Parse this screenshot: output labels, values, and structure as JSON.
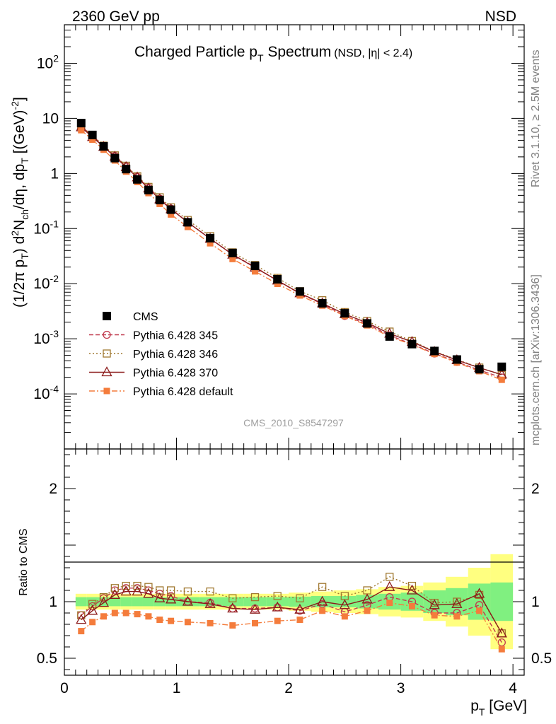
{
  "header": {
    "energy": "2360 GeV pp",
    "process": "NSD"
  },
  "side_text": {
    "rivet": "Rivet 3.1.10, ≥ 2.5M events",
    "url": "mcplots.cern.ch [arXiv:1306.3436]"
  },
  "analysis_id": "CMS_2010_S8547297",
  "chart_data": [
    {
      "type": "scatter",
      "panel": "main",
      "title": "Charged Particle p_T Spectrum",
      "title_parts": {
        "main": "Charged Particle p",
        "sub": "T",
        "rest": " Spectrum",
        "note": "(NSD, |η| < 2.4)"
      },
      "ylabel": "(1/2π p_T) d²N_ch/dη, dp_T [(GeV)⁻²]",
      "ylabel_parts": {
        "a": "(1/2π p",
        "a_sub": "T",
        "b": ") d",
        "b_sup": "2",
        "c": "N",
        "c_sub": "ch",
        "d": "/dη, dp",
        "d_sub": "T",
        "e": " [(GeV)",
        "e_sup": "-2",
        "f": "]"
      },
      "xlabel": "",
      "yscale": "log",
      "xlim": [
        0,
        4.1
      ],
      "ylim": [
        1e-05,
        500
      ],
      "yticks": [
        {
          "base": "10",
          "exp": "-4",
          "value": 0.0001
        },
        {
          "base": "10",
          "exp": "-3",
          "value": 0.001
        },
        {
          "base": "10",
          "exp": "-2",
          "value": 0.01
        },
        {
          "base": "10",
          "exp": "-1",
          "value": 0.1
        },
        {
          "base": "1",
          "exp": "",
          "value": 1
        },
        {
          "base": "10",
          "exp": "",
          "value": 10
        },
        {
          "base": "10",
          "exp": "2",
          "value": 100
        }
      ],
      "x": [
        0.15,
        0.25,
        0.35,
        0.45,
        0.55,
        0.65,
        0.75,
        0.85,
        0.95,
        1.1,
        1.3,
        1.5,
        1.7,
        1.9,
        2.1,
        2.3,
        2.5,
        2.7,
        2.9,
        3.1,
        3.3,
        3.5,
        3.7,
        3.9
      ],
      "series": [
        {
          "name": "CMS",
          "marker": "square-filled",
          "color": "#000000",
          "dash": "none",
          "values": [
            8.2,
            5.0,
            3.1,
            1.9,
            1.2,
            0.78,
            0.5,
            0.33,
            0.22,
            0.13,
            0.067,
            0.036,
            0.021,
            0.012,
            0.0072,
            0.0044,
            0.0029,
            0.0019,
            0.0011,
            0.0008,
            0.0006,
            0.00042,
            0.00028,
            0.00031
          ]
        },
        {
          "name": "Pythia 6.428 345",
          "marker": "circle-open",
          "color": "#c0394d",
          "dash": "6,3",
          "values": [
            7.2,
            4.8,
            3.15,
            2.08,
            1.34,
            0.87,
            0.55,
            0.35,
            0.23,
            0.13,
            0.066,
            0.034,
            0.02,
            0.0114,
            0.0066,
            0.0043,
            0.0026,
            0.00185,
            0.00115,
            0.0008,
            0.00054,
            0.00038,
            0.00027,
            0.000198
          ]
        },
        {
          "name": "Pythia 6.428 346",
          "marker": "square-open",
          "color": "#a07830",
          "dash": "2,3",
          "values": [
            7.2,
            4.9,
            3.2,
            2.13,
            1.38,
            0.89,
            0.57,
            0.37,
            0.243,
            0.143,
            0.073,
            0.037,
            0.0218,
            0.0127,
            0.0073,
            0.005,
            0.00305,
            0.0021,
            0.00135,
            0.00091,
            0.00059,
            0.00042,
            0.0003,
            0.00022
          ]
        },
        {
          "name": "Pythia 6.428 370",
          "marker": "triangle-open",
          "color": "#8b1a1a",
          "dash": "none",
          "values": [
            6.9,
            4.6,
            3.05,
            2.02,
            1.31,
            0.85,
            0.535,
            0.34,
            0.225,
            0.13,
            0.0655,
            0.0337,
            0.0196,
            0.0114,
            0.0067,
            0.0044,
            0.0028,
            0.00195,
            0.00124,
            0.00088,
            0.00058,
            0.00041,
            0.000298,
            0.000224
          ]
        },
        {
          "name": "Pythia 6.428 default",
          "marker": "square-filled-small",
          "color": "#f47c3c",
          "dash": "8,3,2,3",
          "values": [
            6.1,
            4.1,
            2.7,
            1.72,
            1.08,
            0.7,
            0.44,
            0.28,
            0.18,
            0.107,
            0.054,
            0.028,
            0.0167,
            0.0099,
            0.0061,
            0.004,
            0.0026,
            0.00175,
            0.00109,
            0.00078,
            0.00053,
            0.00037,
            0.000258,
            0.00018
          ]
        }
      ]
    },
    {
      "type": "scatter",
      "panel": "ratio",
      "ylabel": "Ratio to CMS",
      "xlabel": "p_T [GeV]",
      "xlabel_parts": {
        "main": "p",
        "sub": "T",
        "rest": " [GeV]"
      },
      "xlim": [
        0,
        4.1
      ],
      "ylim": [
        0.35,
        2.35
      ],
      "xticks": [
        {
          "label": "0",
          "value": 0
        },
        {
          "label": "1",
          "value": 1
        },
        {
          "label": "2",
          "value": 2
        },
        {
          "label": "3",
          "value": 3
        },
        {
          "label": "4",
          "value": 4
        }
      ],
      "yticks": [
        {
          "label": "0.5",
          "value": 0.5
        },
        {
          "label": "1",
          "value": 1
        },
        {
          "label": "2",
          "value": 2
        }
      ],
      "bands": {
        "edges": [
          0.1,
          0.2,
          0.3,
          0.4,
          0.5,
          0.6,
          0.7,
          0.8,
          0.9,
          1.0,
          1.2,
          1.4,
          1.6,
          1.8,
          2.0,
          2.2,
          2.4,
          2.6,
          2.8,
          3.0,
          3.2,
          3.4,
          3.6,
          3.8,
          4.0
        ],
        "inner": [
          0.04,
          0.04,
          0.04,
          0.04,
          0.04,
          0.04,
          0.04,
          0.04,
          0.04,
          0.04,
          0.04,
          0.04,
          0.04,
          0.04,
          0.045,
          0.05,
          0.05,
          0.06,
          0.07,
          0.08,
          0.1,
          0.12,
          0.16,
          0.17
        ],
        "outer": [
          0.07,
          0.07,
          0.07,
          0.07,
          0.07,
          0.07,
          0.07,
          0.07,
          0.07,
          0.07,
          0.07,
          0.07,
          0.07,
          0.07,
          0.08,
          0.09,
          0.1,
          0.11,
          0.13,
          0.14,
          0.17,
          0.22,
          0.3,
          0.42
        ],
        "inner_color": "#80f080",
        "outer_color": "#ffff80"
      },
      "x": [
        0.15,
        0.25,
        0.35,
        0.45,
        0.55,
        0.65,
        0.75,
        0.85,
        0.95,
        1.1,
        1.3,
        1.5,
        1.7,
        1.9,
        2.1,
        2.3,
        2.5,
        2.7,
        2.9,
        3.1,
        3.3,
        3.5,
        3.7,
        3.9
      ],
      "series": [
        {
          "name": "Pythia 6.428 345",
          "marker": "circle-open",
          "color": "#c0394d",
          "dash": "6,3",
          "values": [
            0.88,
            0.96,
            1.03,
            1.1,
            1.12,
            1.12,
            1.1,
            1.07,
            1.05,
            1.0,
            0.99,
            0.94,
            0.94,
            0.95,
            0.92,
            0.98,
            0.91,
            0.97,
            1.04,
            1.0,
            0.9,
            0.9,
            0.97,
            0.64
          ]
        },
        {
          "name": "Pythia 6.428 346",
          "marker": "square-open",
          "color": "#a07830",
          "dash": "2,3",
          "values": [
            0.88,
            0.98,
            1.04,
            1.12,
            1.14,
            1.14,
            1.13,
            1.1,
            1.1,
            1.09,
            1.09,
            1.03,
            1.04,
            1.05,
            1.03,
            1.13,
            1.05,
            1.1,
            1.22,
            1.14,
            0.99,
            1.0,
            1.06,
            0.72
          ]
        },
        {
          "name": "Pythia 6.428 370",
          "marker": "triangle-open",
          "color": "#8b1a1a",
          "dash": "none",
          "values": [
            0.84,
            0.92,
            0.99,
            1.06,
            1.09,
            1.09,
            1.07,
            1.03,
            1.02,
            1.0,
            0.98,
            0.94,
            0.93,
            0.95,
            0.93,
            1.0,
            0.97,
            1.02,
            1.13,
            1.1,
            0.97,
            0.98,
            1.07,
            0.72
          ]
        },
        {
          "name": "Pythia 6.428 default",
          "marker": "square-filled-small",
          "color": "#f47c3c",
          "dash": "8,3,2,3",
          "values": [
            0.74,
            0.82,
            0.87,
            0.9,
            0.9,
            0.89,
            0.87,
            0.84,
            0.83,
            0.82,
            0.81,
            0.79,
            0.81,
            0.83,
            0.84,
            0.92,
            0.87,
            0.92,
            0.99,
            0.96,
            0.88,
            0.87,
            0.92,
            0.58
          ]
        }
      ]
    }
  ]
}
